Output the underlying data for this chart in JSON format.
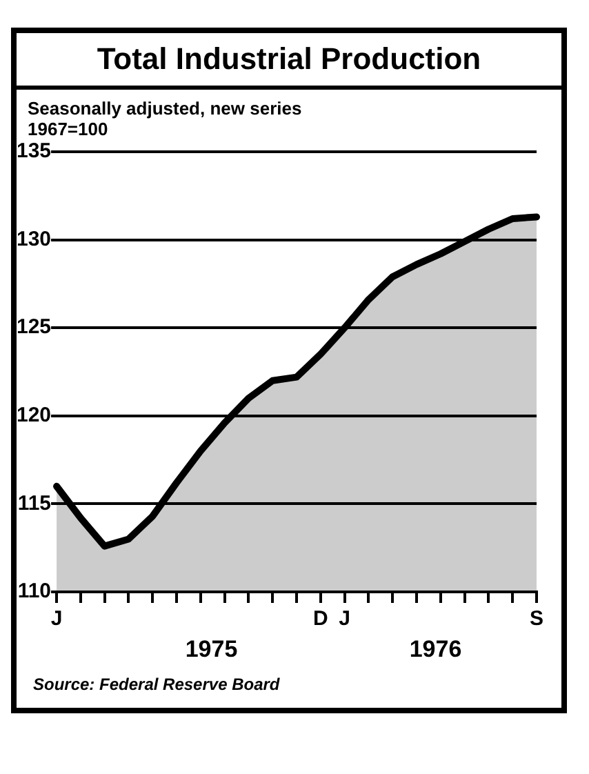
{
  "chart_data": {
    "type": "area",
    "title": "Total Industrial Production",
    "subtitle": "Seasonally adjusted, new series\n1967=100",
    "categories": [
      "J",
      null,
      null,
      null,
      null,
      null,
      null,
      null,
      null,
      null,
      null,
      "D",
      "J",
      null,
      null,
      null,
      null,
      null,
      null,
      null,
      "S"
    ],
    "series": [
      {
        "color": "#000000",
        "values": [
          116.0,
          114.2,
          112.6,
          113.0,
          114.3,
          116.2,
          118.0,
          119.6,
          121.0,
          122.0,
          122.2,
          123.5,
          125.0,
          126.6,
          127.9,
          128.6,
          129.2,
          129.9,
          130.6,
          131.2,
          131.3
        ]
      }
    ],
    "ylim": [
      110,
      135
    ],
    "yticks": [
      110,
      115,
      120,
      125,
      130,
      135
    ],
    "grid": "y",
    "legend": false,
    "annotations": [
      "1975",
      "1976",
      "Source: Federal Reserve Board"
    ]
  }
}
